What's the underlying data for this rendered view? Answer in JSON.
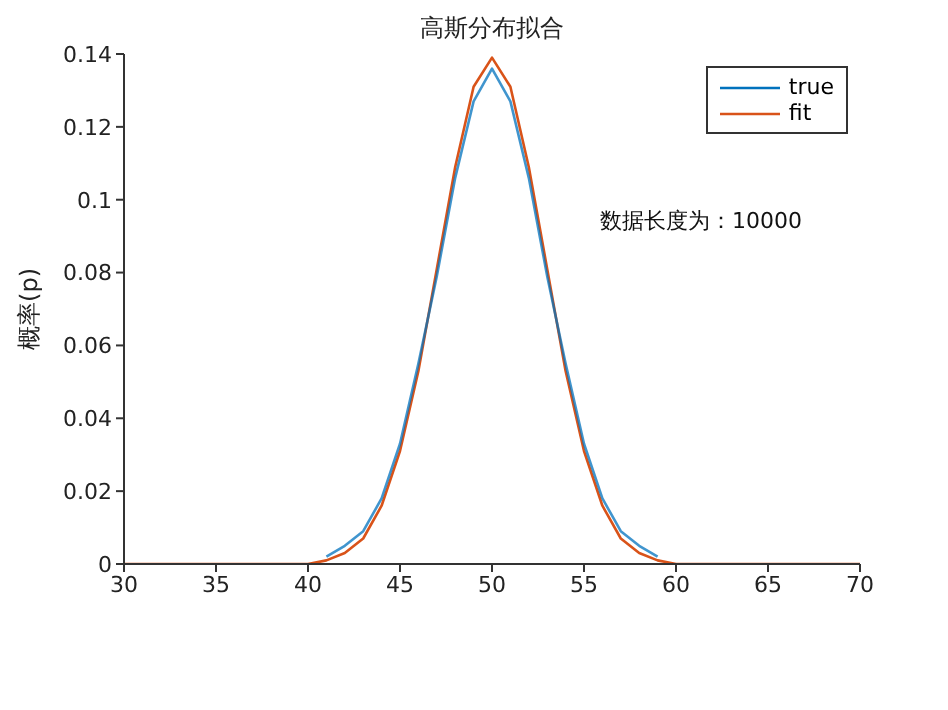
{
  "chart_data": {
    "type": "line",
    "title": "高斯分布拟合",
    "ylabel": "概率(p)",
    "annotations": [
      "数据长度为：10000"
    ],
    "x": [
      30,
      35,
      40,
      41,
      42,
      43,
      44,
      45,
      46,
      47,
      48,
      49,
      50,
      51,
      52,
      53,
      54,
      55,
      56,
      57,
      58,
      59,
      60,
      65,
      70
    ],
    "series": [
      {
        "name": "true",
        "color": "#0072bd",
        "x": [
          41,
          42,
          43,
          44,
          45,
          46,
          47,
          48,
          49,
          50,
          51,
          52,
          53,
          54,
          55,
          56,
          57,
          58,
          59
        ],
        "values": [
          0.002,
          0.005,
          0.009,
          0.018,
          0.033,
          0.055,
          0.079,
          0.106,
          0.127,
          0.136,
          0.127,
          0.106,
          0.079,
          0.055,
          0.033,
          0.018,
          0.009,
          0.005,
          0.002
        ]
      },
      {
        "name": "fit",
        "color": "#d95319",
        "values": [
          0,
          0,
          0,
          0.001,
          0.003,
          0.007,
          0.016,
          0.031,
          0.053,
          0.081,
          0.109,
          0.131,
          0.139,
          0.131,
          0.109,
          0.081,
          0.053,
          0.031,
          0.016,
          0.007,
          0.003,
          0.001,
          0,
          0,
          0
        ]
      }
    ],
    "xlim": [
      30,
      70
    ],
    "xticks": [
      30,
      35,
      40,
      45,
      50,
      55,
      60,
      65,
      70
    ],
    "ylim": [
      0,
      0.14
    ],
    "yticks": [
      0,
      0.02,
      0.04,
      0.06,
      0.08,
      0.1,
      0.12,
      0.14
    ],
    "grid": false,
    "legend": "top right",
    "marker": "none",
    "line_style": "solid"
  }
}
